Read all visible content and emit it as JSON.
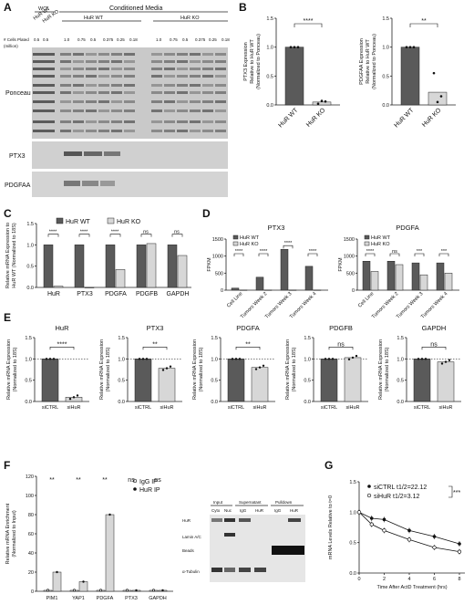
{
  "panels": {
    "A": {
      "letter": "A",
      "header_wcl": "WCL",
      "header_cm": "Conditioned Media",
      "lane_groups": [
        "HuR WT",
        "HuR KO",
        "HuR WT",
        "HuR KO"
      ],
      "cells_plated_label_1": "# Cells Plated",
      "cells_plated_label_2": "(million)",
      "cells_plated": [
        "0.5",
        "0.5",
        "1.0",
        "0.75",
        "0.5",
        "0.375",
        "0.25",
        "0.18",
        "1.0",
        "0.75",
        "0.5",
        "0.375",
        "0.25",
        "0.18"
      ],
      "blot_labels": [
        "Ponceau",
        "PTX3",
        "PDGFAA"
      ]
    },
    "B": {
      "letter": "B",
      "left_ylabel_1": "PTX3 Expression",
      "left_ylabel_2": "Relative to HuR WT",
      "left_ylabel_3": "(Normalized to Ponceau)",
      "right_ylabel_1": "PDGFAA Expression",
      "right_ylabel_2": "Relative to HuR WT",
      "right_ylabel_3": "(Normalized to Ponceau)",
      "left_sig": "****",
      "right_sig": "**"
    },
    "C": {
      "letter": "C",
      "ylabel_1": "Relative mRNA Expression to",
      "ylabel_2": "HuR WT (Normalized to 18S)",
      "legend": [
        "HuR WT",
        "HuR KO"
      ],
      "sig": [
        "****",
        "****",
        "****",
        "ns",
        "ns"
      ]
    },
    "D": {
      "letter": "D",
      "left_title": "PTX3",
      "right_title": "PDGFA",
      "ylabel": "FPKM",
      "legend": [
        "HuR WT",
        "HuR KO"
      ],
      "left_sig": [
        "****",
        "****",
        "****",
        "****"
      ],
      "right_sig": [
        "****",
        "ns",
        "***",
        "***"
      ]
    },
    "E": {
      "letter": "E",
      "ylabel_1": "Relative mRNA Expression",
      "ylabel_2": "(Normalized to 18S)",
      "sig": [
        "****",
        "**",
        "**",
        "ns",
        "ns"
      ]
    },
    "F": {
      "letter": "F",
      "ylabel_1": "Relative mRNA Enrichment",
      "ylabel_2": "(Normalized to Input)",
      "legend": [
        "IgG IP",
        "HuR IP"
      ],
      "sig": [
        "**",
        "**",
        "**",
        "ns",
        "ns"
      ],
      "blot_headers": [
        "Input",
        "Supernatant",
        "Pulldown"
      ],
      "blot_lanes": [
        "Cyto",
        "Nuc",
        "IgG",
        "HuR",
        "IgG",
        "HuR"
      ],
      "blot_labels": [
        "HuR",
        "Lamin A/C",
        "Beads",
        "α-Tubulin"
      ]
    },
    "G": {
      "letter": "G",
      "ylabel": "mRNA Levels Relative to t=0",
      "xlabel": "Time After ActD Treatment (hrs)",
      "legend": [
        "siCTRL t1/2=22.12",
        "siHuR t1/2=3.12"
      ],
      "sig": "***"
    }
  },
  "chart_data": [
    {
      "id": "B-left",
      "type": "bar",
      "categories": [
        "HuR WT",
        "HuR KO"
      ],
      "values": [
        1.0,
        0.05
      ],
      "points": [
        [
          1.0,
          1.0,
          1.0
        ],
        [
          0.02,
          0.07,
          0.06
        ]
      ],
      "ylim": [
        0,
        1.5
      ],
      "yticks": [
        "0.0",
        "0.5",
        "1.0",
        "1.5"
      ]
    },
    {
      "id": "B-right",
      "type": "bar",
      "categories": [
        "HuR WT",
        "HuR KO"
      ],
      "values": [
        1.0,
        0.22
      ],
      "points": [
        [
          1.0,
          1.0,
          1.0
        ],
        [
          0.55,
          0.05,
          0.15
        ]
      ],
      "ylim": [
        0,
        1.5
      ],
      "yticks": [
        "0.0",
        "0.5",
        "1.0",
        "1.5"
      ]
    },
    {
      "id": "C",
      "type": "bar",
      "categories": [
        "HuR",
        "PTX3",
        "PDGFA",
        "PDGFB",
        "GAPDH"
      ],
      "series": [
        {
          "name": "HuR WT",
          "values": [
            1.0,
            1.0,
            1.0,
            1.0,
            1.0
          ]
        },
        {
          "name": "HuR KO",
          "values": [
            0.03,
            0.0,
            0.42,
            1.03,
            0.75
          ]
        }
      ],
      "ylim": [
        0,
        1.5
      ],
      "yticks": [
        "0.0",
        "0.5",
        "1.0",
        "1.5"
      ]
    },
    {
      "id": "D-left",
      "type": "bar",
      "title": "PTX3",
      "categories": [
        "Cell Line",
        "Tumors Week 2",
        "Tumors Week 3",
        "Tumors Week 4"
      ],
      "series": [
        {
          "name": "HuR WT",
          "values": [
            60,
            380,
            1200,
            700
          ]
        },
        {
          "name": "HuR KO",
          "values": [
            5,
            5,
            5,
            5
          ]
        }
      ],
      "ylim": [
        0,
        1500
      ],
      "yticks": [
        "0",
        "500",
        "1000",
        "1500"
      ]
    },
    {
      "id": "D-right",
      "type": "bar",
      "title": "PDGFA",
      "categories": [
        "Cell Line",
        "Tumors Week 2",
        "Tumors Week 3",
        "Tumors Week 4"
      ],
      "series": [
        {
          "name": "HuR WT",
          "values": [
            850,
            850,
            800,
            800
          ]
        },
        {
          "name": "HuR KO",
          "values": [
            550,
            750,
            450,
            500
          ]
        }
      ],
      "ylim": [
        0,
        1500
      ],
      "yticks": [
        "0",
        "500",
        "1000",
        "1500"
      ]
    },
    {
      "id": "E",
      "type": "bar",
      "panels": [
        {
          "title": "HuR",
          "categories": [
            "siCTRL",
            "siHuR"
          ],
          "values": [
            1.0,
            0.1
          ]
        },
        {
          "title": "PTX3",
          "categories": [
            "siCTRL",
            "siHuR"
          ],
          "values": [
            1.0,
            0.78
          ]
        },
        {
          "title": "PDGFA",
          "categories": [
            "siCTRL",
            "siHuR"
          ],
          "values": [
            1.0,
            0.8
          ]
        },
        {
          "title": "PDGFB",
          "categories": [
            "siCTRL",
            "siHuR"
          ],
          "values": [
            1.0,
            1.03
          ]
        },
        {
          "title": "GAPDH",
          "categories": [
            "siCTRL",
            "siHuR"
          ],
          "values": [
            1.0,
            0.93
          ]
        }
      ],
      "ylim": [
        0,
        1.5
      ],
      "yticks": [
        "0.0",
        "0.5",
        "1.0",
        "1.5"
      ]
    },
    {
      "id": "F",
      "type": "bar",
      "categories": [
        "PIM1",
        "YAP1",
        "PDGFA",
        "PTX3",
        "GAPDH"
      ],
      "series": [
        {
          "name": "IgG IP",
          "values": [
            1,
            1,
            1,
            1,
            1
          ]
        },
        {
          "name": "HuR IP",
          "values": [
            20,
            10,
            80,
            1,
            1
          ]
        }
      ],
      "ylim": [
        0,
        120
      ],
      "yticks": [
        "0",
        "20",
        "40",
        "60",
        "80",
        "100",
        "120"
      ]
    },
    {
      "id": "G",
      "type": "line",
      "x": [
        0,
        1,
        2,
        4,
        6,
        8
      ],
      "series": [
        {
          "name": "siCTRL",
          "values": [
            1.0,
            0.9,
            0.88,
            0.7,
            0.6,
            0.48
          ]
        },
        {
          "name": "siHuR",
          "values": [
            1.0,
            0.8,
            0.7,
            0.55,
            0.42,
            0.35
          ]
        }
      ],
      "xlim": [
        0,
        8
      ],
      "ylim": [
        0.0,
        1.5
      ],
      "xticks": [
        "0",
        "2",
        "4",
        "6",
        "8"
      ],
      "yticks": [
        "0.0",
        "0.5",
        "1.0",
        "1.5"
      ]
    }
  ]
}
